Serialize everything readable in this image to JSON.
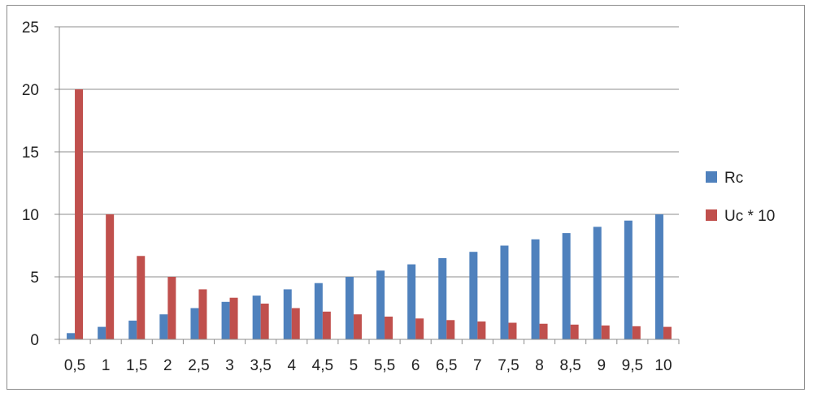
{
  "chart_data": {
    "type": "bar",
    "categories": [
      "0,5",
      "1",
      "1,5",
      "2",
      "2,5",
      "3",
      "3,5",
      "4",
      "4,5",
      "5",
      "5,5",
      "6",
      "6,5",
      "7",
      "7,5",
      "8",
      "8,5",
      "9",
      "9,5",
      "10"
    ],
    "series": [
      {
        "name": "Rc",
        "color": "#4f81bd",
        "values": [
          0.5,
          1,
          1.5,
          2,
          2.5,
          3,
          3.5,
          4,
          4.5,
          5,
          5.5,
          6,
          6.5,
          7,
          7.5,
          8,
          8.5,
          9,
          9.5,
          10
        ]
      },
      {
        "name": "Uc * 10",
        "color": "#c0504d",
        "values": [
          20,
          10,
          6.67,
          5,
          4,
          3.33,
          2.86,
          2.5,
          2.22,
          2,
          1.82,
          1.67,
          1.54,
          1.43,
          1.33,
          1.25,
          1.18,
          1.11,
          1.05,
          1
        ]
      }
    ],
    "yticks": [
      0,
      5,
      10,
      15,
      20,
      25
    ],
    "ylim": [
      0,
      25
    ],
    "grid": true,
    "legend": "right",
    "title": "",
    "xlabel": "",
    "ylabel": ""
  }
}
